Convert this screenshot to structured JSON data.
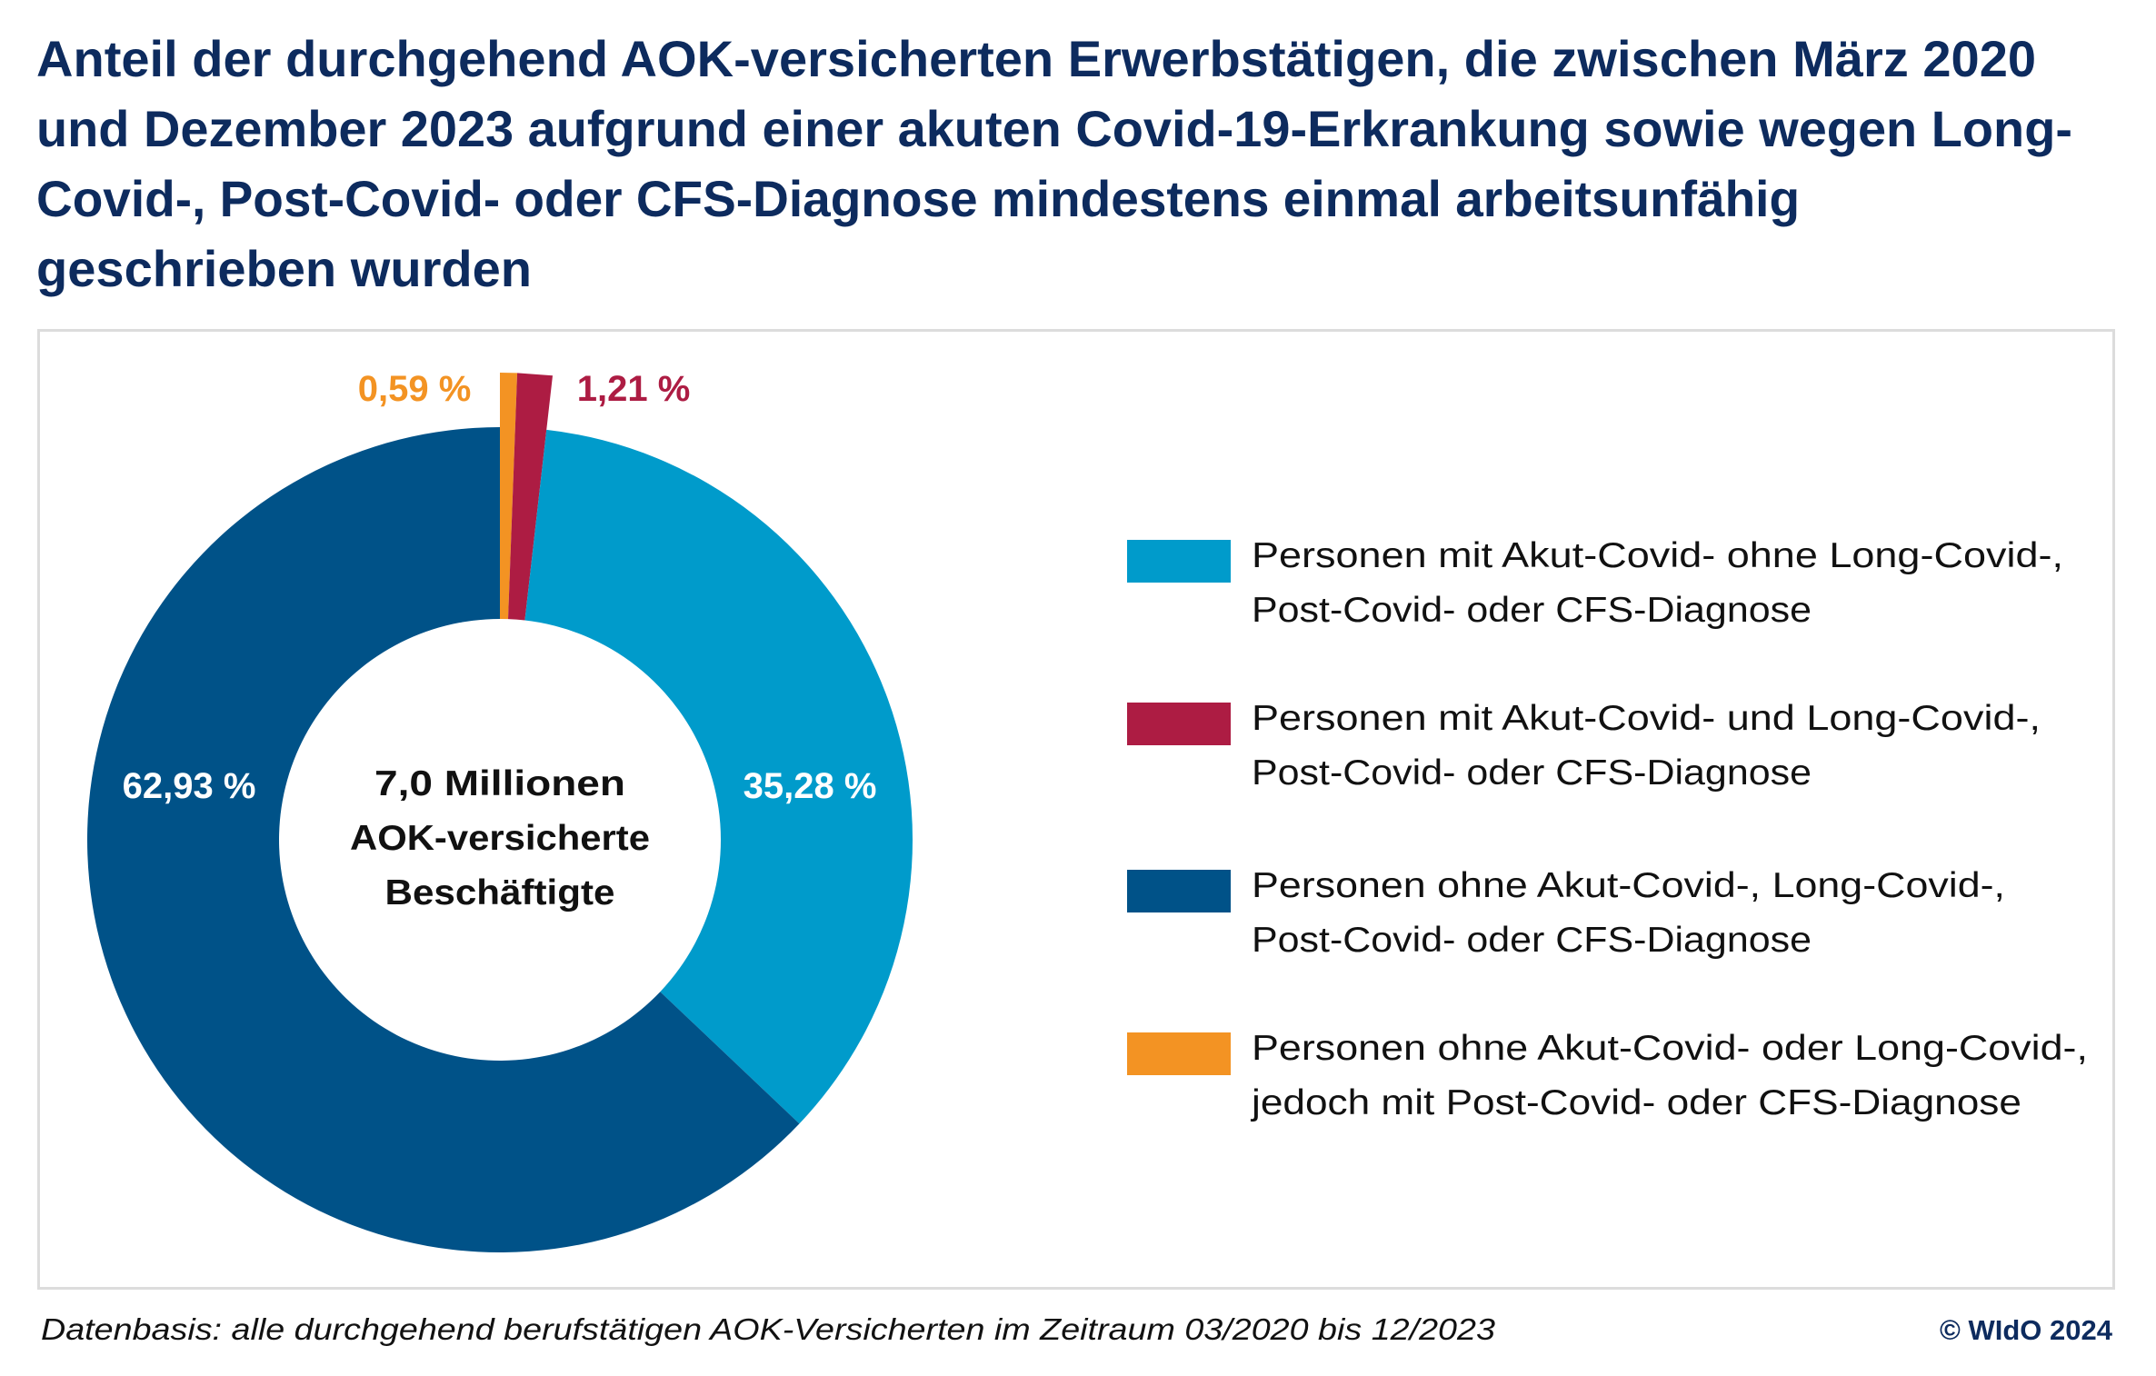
{
  "title_lines": [
    "Anteil der durchgehend AOK-versicherten Erwerbstätigen, die zwischen März 2020",
    "und Dezember 2023 aufgrund einer akuten Covid-19-Erkrankung sowie wegen Long-",
    "Covid-, Post-Covid- oder CFS-Diagnose mindestens einmal arbeitsunfähig",
    "geschrieben wurden"
  ],
  "chart_data": {
    "type": "pie",
    "variant": "donut",
    "title": "Anteil der durchgehend AOK-versicherten Erwerbstätigen, die zwischen März 2020 und Dezember 2023 aufgrund einer akuten Covid-19-Erkrankung sowie wegen Long-Covid-, Post-Covid- oder CFS-Diagnose mindestens einmal arbeitsunfähig geschrieben wurden",
    "unit": "%",
    "center_label": [
      "7,0 Millionen",
      "AOK-versicherte",
      "Beschäftigte"
    ],
    "start": "top",
    "direction": "clockwise",
    "legend_position": "right",
    "slices": [
      {
        "key": "orange",
        "label": "Personen ohne Akut-Covid- oder Long-Covid-, jedoch mit Post-Covid- oder CFS-Diagnose",
        "value": 0.59,
        "display": "0,59 %",
        "color": "#f39323",
        "exploded": true,
        "label_color": "#f39323",
        "label_outside": true
      },
      {
        "key": "red",
        "label": "Personen mit Akut-Covid- und Long-Covid-, Post-Covid- oder CFS-Diagnose",
        "value": 1.21,
        "display": "1,21 %",
        "color": "#ad1c43",
        "exploded": true,
        "label_color": "#ad1c43",
        "label_outside": true
      },
      {
        "key": "lightblue",
        "label": "Personen mit Akut-Covid- ohne Long-Covid-, Post-Covid- oder CFS-Diagnose",
        "value": 35.28,
        "display": "35,28 %",
        "color": "#009bcb",
        "exploded": false,
        "label_color": "#ffffff",
        "label_outside": false
      },
      {
        "key": "darkblue",
        "label": "Personen ohne Akut-Covid-, Long-Covid-, Post-Covid- oder CFS-Diagnose",
        "value": 62.93,
        "display": "62,93 %",
        "color": "#005288",
        "exploded": false,
        "label_color": "#ffffff",
        "label_outside": false
      }
    ]
  },
  "legend": [
    {
      "color": "#009bcb",
      "lines": [
        "Personen mit Akut-Covid- ohne Long-Covid-,",
        "Post-Covid- oder CFS-Diagnose"
      ]
    },
    {
      "color": "#ad1c43",
      "lines": [
        "Personen mit Akut-Covid- und Long-Covid-,",
        "Post-Covid- oder CFS-Diagnose"
      ]
    },
    {
      "color": "#005288",
      "lines": [
        "Personen ohne Akut-Covid-, Long-Covid-,",
        "Post-Covid- oder CFS-Diagnose"
      ]
    },
    {
      "color": "#f39323",
      "lines": [
        "Personen ohne Akut-Covid- oder Long-Covid-,",
        "jedoch mit Post-Covid- oder CFS-Diagnose"
      ]
    }
  ],
  "footer": {
    "note": "Datenbasis: alle durchgehend berufstätigen AOK-Versicherten im Zeitraum 03/2020 bis 12/2023",
    "copyright": "© WIdO 2024"
  }
}
